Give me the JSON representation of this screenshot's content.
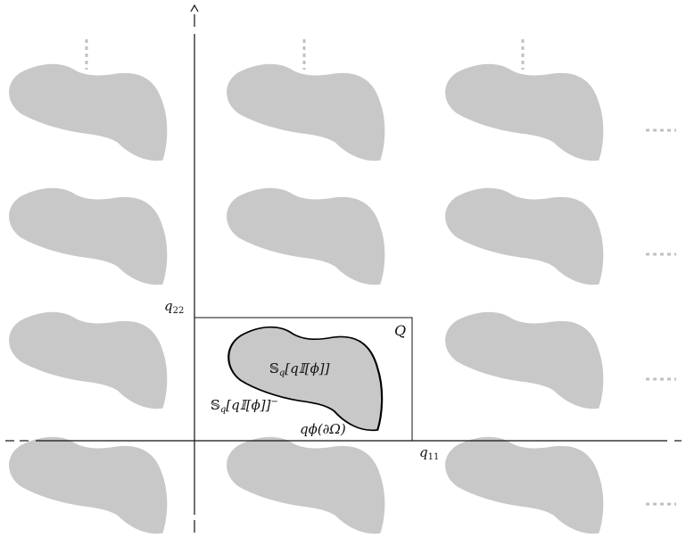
{
  "labels": {
    "q22": "q",
    "q22_sub": "22",
    "q11": "q",
    "q11_sub": "11",
    "Q": "Q",
    "inner_shape": "𝕊",
    "inner_shape_sub": "q",
    "inner_shape_rest": "[q𝕀[ϕ]]",
    "outer_region": "𝕊",
    "outer_region_sub": "q",
    "outer_region_rest": "[q𝕀[ϕ]]",
    "outer_region_sup": "−",
    "boundary": "qϕ(∂Ω)"
  },
  "colors": {
    "tile_fill": "#c8c8c8",
    "dots": "#c0c0c0",
    "axis": "#111111",
    "central_fill": "#c8c8c8",
    "central_stroke": "#000000"
  }
}
